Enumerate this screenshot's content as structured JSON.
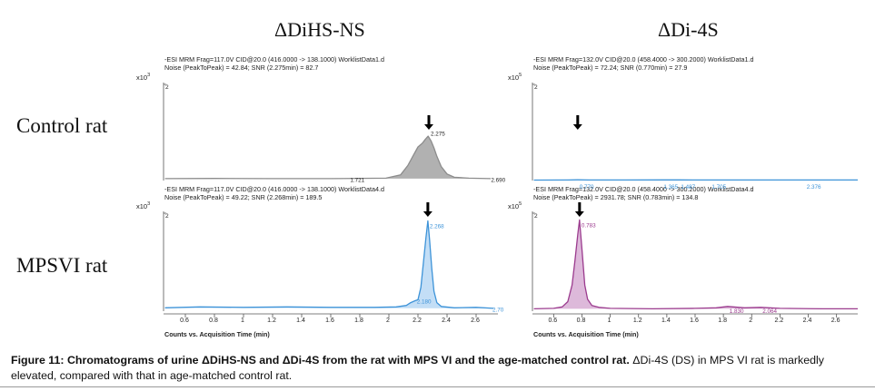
{
  "columns": [
    "ΔDiHS-NS",
    "ΔDi-4S"
  ],
  "rows": [
    "Control rat",
    "MPSVI rat"
  ],
  "x10_label": "x10",
  "x_axis_title": "Counts vs. Acquisition Time (min)",
  "caption": {
    "label": "Figure 11:",
    "bold_text": "Chromatograms of urine ΔDiHS-NS and ΔDi-4S from the rat with MPS VI and the age-matched control rat.",
    "text": " ΔDi-4S (DS) in MPS VI rat is markedly elevated, compared with that in age-matched control rat."
  },
  "chart_data": [
    {
      "type": "line",
      "column": "ΔDiHS-NS",
      "row": "Control rat",
      "header1": "-ESI MRM Frag=117.0V CID@20.0 (416.0000 -> 138.1000) WorklistData1.d",
      "header2": "Noise (PeakToPeak) = 42.84; SNR (2.275min) = 82.7",
      "y_exponent": "3",
      "ytick": "2",
      "xlim": [
        0.45,
        2.75
      ],
      "ylim": [
        0,
        2.1
      ],
      "xticks": [
        "0.6",
        "0.8",
        "1",
        "1.2",
        "1.4",
        "1.6",
        "1.8",
        "2",
        "2.2",
        "2.4",
        "2.6"
      ],
      "color": "#8c8c8c",
      "fill": "#a9a9a9",
      "filled": true,
      "arrow_x": 2.275,
      "peak_labels": [
        {
          "x": 2.275,
          "y": 1.02,
          "text": "2.275"
        },
        {
          "x": 1.721,
          "y": 0.03,
          "text": "1.721"
        },
        {
          "x": 2.69,
          "y": 0.03,
          "text": "2.690"
        }
      ],
      "series": [
        {
          "x": [
            0.46,
            0.8,
            1.2,
            1.6,
            1.98,
            2.08,
            2.13,
            2.17,
            2.2,
            2.23,
            2.25,
            2.27,
            2.29,
            2.31,
            2.33,
            2.36,
            2.4,
            2.45,
            2.55,
            2.7
          ],
          "y": [
            0.04,
            0.045,
            0.04,
            0.04,
            0.05,
            0.12,
            0.32,
            0.55,
            0.72,
            0.8,
            0.88,
            0.95,
            0.85,
            0.7,
            0.52,
            0.3,
            0.14,
            0.07,
            0.05,
            0.04
          ]
        }
      ]
    },
    {
      "type": "line",
      "column": "ΔDiHS-NS",
      "row": "MPSVI rat",
      "header1": "-ESI MRM Frag=117.0V CID@20.0 (416.0000 -> 138.1000) WorklistData4.d",
      "header2": "Noise (PeakToPeak) = 49.22; SNR (2.268min) = 189.5",
      "y_exponent": "3",
      "ytick": "2",
      "xlim": [
        0.45,
        2.75
      ],
      "ylim": [
        0,
        2.1
      ],
      "xticks": [
        "0.6",
        "0.8",
        "1",
        "1.2",
        "1.4",
        "1.6",
        "1.8",
        "2",
        "2.2",
        "2.4",
        "2.6"
      ],
      "color": "#3d93d8",
      "fill": "#bcdaf5",
      "filled": true,
      "arrow_x": 2.268,
      "peak_labels": [
        {
          "x": 2.268,
          "y": 1.8,
          "text": "2.268"
        },
        {
          "x": 2.18,
          "y": 0.22,
          "text": "2.180"
        },
        {
          "x": 2.7,
          "y": 0.05,
          "text": "2.70"
        }
      ],
      "series": [
        {
          "x": [
            0.46,
            0.7,
            1.0,
            1.3,
            1.6,
            1.9,
            2.05,
            2.12,
            2.15,
            2.18,
            2.2,
            2.22,
            2.24,
            2.255,
            2.268,
            2.28,
            2.295,
            2.31,
            2.33,
            2.36,
            2.45,
            2.6,
            2.72
          ],
          "y": [
            0.07,
            0.09,
            0.08,
            0.09,
            0.08,
            0.08,
            0.09,
            0.12,
            0.18,
            0.22,
            0.24,
            0.5,
            1.1,
            1.55,
            1.9,
            1.5,
            0.9,
            0.42,
            0.18,
            0.1,
            0.07,
            0.08,
            0.06
          ]
        }
      ]
    },
    {
      "type": "line",
      "column": "ΔDi-4S",
      "row": "Control rat",
      "header1": "-ESI MRM Frag=132.0V CID@20.0 (458.4000 -> 300.2000) WorklistData1.d",
      "header2": "Noise (PeakToPeak) = 72.24; SNR (0.770min) = 27.9",
      "y_exponent": "5",
      "ytick": "2",
      "xlim": [
        0.45,
        2.75
      ],
      "ylim": [
        0,
        2.1
      ],
      "xticks": [
        "0.6",
        "0.8",
        "1",
        "1.2",
        "1.4",
        "1.6",
        "1.8",
        "2",
        "2.2",
        "2.4",
        "2.6"
      ],
      "color": "#3d93d8",
      "fill": "#bcdaf5",
      "filled": false,
      "arrow_x": 0.77,
      "peak_labels": [
        {
          "x": 0.77,
          "y": -0.12,
          "text": "0.770"
        },
        {
          "x": 1.365,
          "y": -0.12,
          "text": "1.365"
        },
        {
          "x": 1.487,
          "y": -0.12,
          "text": "1.487"
        },
        {
          "x": 1.705,
          "y": -0.12,
          "text": "1.705"
        },
        {
          "x": 2.376,
          "y": -0.12,
          "text": "2.376"
        }
      ],
      "series": [
        {
          "x": [
            0.46,
            0.7,
            0.77,
            0.85,
            1.1,
            1.365,
            1.487,
            1.705,
            2.0,
            2.376,
            2.75
          ],
          "y": [
            0.01,
            0.012,
            0.016,
            0.012,
            0.011,
            0.013,
            0.013,
            0.012,
            0.011,
            0.012,
            0.011
          ]
        }
      ]
    },
    {
      "type": "line",
      "column": "ΔDi-4S",
      "row": "MPSVI rat",
      "header1": "-ESI MRM Frag=132.0V CID@20.0 (458.4000 -> 300.2000) WorklistData4.d",
      "header2": "Noise (PeakToPeak) = 2931.78; SNR (0.783min) = 134.8",
      "y_exponent": "5",
      "ytick": "2",
      "xlim": [
        0.45,
        2.75
      ],
      "ylim": [
        0,
        2.1
      ],
      "xticks": [
        "0.6",
        "0.8",
        "1",
        "1.2",
        "1.4",
        "1.6",
        "1.8",
        "2",
        "2.2",
        "2.4",
        "2.6"
      ],
      "color": "#9b3b8e",
      "fill": "#d9b1d6",
      "filled": true,
      "arrow_x": 0.783,
      "peak_labels": [
        {
          "x": 0.783,
          "y": 1.82,
          "text": "0.783"
        },
        {
          "x": 1.83,
          "y": 0.02,
          "text": "1.830"
        },
        {
          "x": 2.064,
          "y": 0.02,
          "text": "2.064"
        }
      ],
      "series": [
        {
          "x": [
            0.46,
            0.6,
            0.66,
            0.7,
            0.73,
            0.75,
            0.77,
            0.783,
            0.8,
            0.82,
            0.84,
            0.87,
            0.92,
            1.0,
            1.3,
            1.6,
            1.75,
            1.83,
            1.95,
            2.064,
            2.2,
            2.5,
            2.75
          ],
          "y": [
            0.05,
            0.06,
            0.09,
            0.2,
            0.55,
            1.05,
            1.6,
            1.92,
            1.3,
            0.55,
            0.25,
            0.12,
            0.08,
            0.06,
            0.05,
            0.06,
            0.07,
            0.1,
            0.07,
            0.08,
            0.06,
            0.05,
            0.05
          ]
        }
      ]
    }
  ]
}
